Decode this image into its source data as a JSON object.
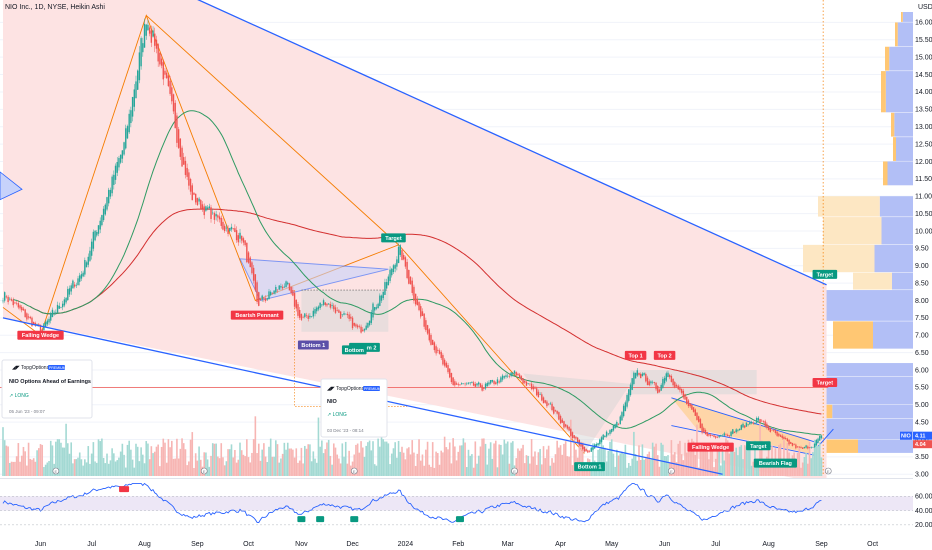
{
  "header": {
    "symbol_line": "NIO Inc., 1D, NYSE, Heikin Ashi"
  },
  "colors": {
    "up": "#26a69a",
    "down": "#ef5350",
    "wedge_fill": "#fde3e3",
    "wedge_line": "#2962ff",
    "zigzag": "#f57c00",
    "ma_red": "#d32f2f",
    "ma_green": "#2e9a62",
    "rsi": "#2962ff",
    "vp_blue": "#aebcf6",
    "vp_orange": "#ffc46b",
    "vp_cream": "#fde6c0",
    "target_red": "#ef5350"
  },
  "chart_data": {
    "type": "candlestick",
    "price_axis": {
      "currency": "USD",
      "ticks": [
        "16.00",
        "15.50",
        "15.00",
        "14.50",
        "14.00",
        "13.50",
        "13.00",
        "12.50",
        "12.00",
        "11.50",
        "11.00",
        "10.50",
        "10.00",
        "9.50",
        "9.00",
        "8.50",
        "8.00",
        "7.50",
        "7.00",
        "6.50",
        "6.00",
        "5.50",
        "5.00",
        "4.50",
        "4.00",
        "3.50",
        "3.00"
      ],
      "range": [
        2.95,
        16.3
      ]
    },
    "time_axis": {
      "ticks": [
        "Jun",
        "Jul",
        "Aug",
        "Sep",
        "Oct",
        "Nov",
        "Dec",
        "2024",
        "Feb",
        "Mar",
        "Apr",
        "May",
        "Jun",
        "Jul",
        "Aug",
        "Sep",
        "Oct"
      ],
      "range": [
        "2023-05-10",
        "2024-10-20"
      ]
    },
    "key_points": [
      {
        "date": "2023-05-10",
        "price": 8.2
      },
      {
        "date": "2023-06-01",
        "price": 7.1
      },
      {
        "date": "2023-06-25",
        "price": 8.8
      },
      {
        "date": "2023-07-20",
        "price": 12.5
      },
      {
        "date": "2023-08-02",
        "price": 16.2
      },
      {
        "date": "2023-08-12",
        "price": 14.5
      },
      {
        "date": "2023-08-28",
        "price": 11.0
      },
      {
        "date": "2023-09-15",
        "price": 10.2
      },
      {
        "date": "2023-09-27",
        "price": 9.8
      },
      {
        "date": "2023-10-06",
        "price": 7.9
      },
      {
        "date": "2023-10-22",
        "price": 8.5
      },
      {
        "date": "2023-11-01",
        "price": 7.4
      },
      {
        "date": "2023-11-15",
        "price": 8.0
      },
      {
        "date": "2023-12-05",
        "price": 7.1
      },
      {
        "date": "2023-12-20",
        "price": 8.4
      },
      {
        "date": "2023-12-28",
        "price": 9.5
      },
      {
        "date": "2024-01-10",
        "price": 7.5
      },
      {
        "date": "2024-01-28",
        "price": 5.6
      },
      {
        "date": "2024-02-15",
        "price": 5.5
      },
      {
        "date": "2024-03-05",
        "price": 5.9
      },
      {
        "date": "2024-03-25",
        "price": 5.0
      },
      {
        "date": "2024-04-15",
        "price": 3.6
      },
      {
        "date": "2024-05-05",
        "price": 4.5
      },
      {
        "date": "2024-05-15",
        "price": 6.0
      },
      {
        "date": "2024-05-28",
        "price": 5.4
      },
      {
        "date": "2024-06-02",
        "price": 6.0
      },
      {
        "date": "2024-06-25",
        "price": 4.1
      },
      {
        "date": "2024-07-10",
        "price": 4.2
      },
      {
        "date": "2024-07-25",
        "price": 4.6
      },
      {
        "date": "2024-08-08",
        "price": 4.0
      },
      {
        "date": "2024-08-20",
        "price": 3.7
      },
      {
        "date": "2024-08-28",
        "price": 3.9
      },
      {
        "date": "2024-09-01",
        "price": 4.11
      }
    ],
    "last_price": "4.11",
    "last_price_secondary": "4.04",
    "last_price_tag": "NIO",
    "annotations": [
      {
        "text": "Falling Wedge",
        "kind": "red",
        "date": "2023-06-01",
        "price": 7.0
      },
      {
        "text": "Bearish Pennant",
        "kind": "red",
        "date": "2023-10-06",
        "price": 7.58
      },
      {
        "text": "Bottom 1",
        "kind": "purple",
        "date": "2023-11-08",
        "price": 6.72
      },
      {
        "text": "Bottom 2",
        "kind": "teal",
        "date": "2023-12-08",
        "price": 6.65
      },
      {
        "text": "Bottom",
        "kind": "teal",
        "date": "2023-12-02",
        "price": 6.58
      },
      {
        "text": "Target",
        "kind": "teal",
        "date": "2023-12-25",
        "price": 9.8
      },
      {
        "text": "Top 1",
        "kind": "red",
        "date": "2024-05-15",
        "price": 6.42
      },
      {
        "text": "Top 2",
        "kind": "red",
        "date": "2024-06-01",
        "price": 6.42
      },
      {
        "text": "Bottom 1",
        "kind": "teal",
        "date": "2024-04-18",
        "price": 3.22
      },
      {
        "text": "Falling Wedge",
        "kind": "red",
        "date": "2024-06-28",
        "price": 3.78
      },
      {
        "text": "Target",
        "kind": "teal",
        "date": "2024-07-26",
        "price": 3.82
      },
      {
        "text": "Bearish Flag",
        "kind": "teal",
        "date": "2024-08-05",
        "price": 3.32
      },
      {
        "text": "Target",
        "kind": "teal",
        "date": "2024-09-03",
        "price": 8.75
      },
      {
        "text": "Target",
        "kind": "red",
        "date": "2024-09-03",
        "price": 5.64
      }
    ],
    "rsi_ticks": [
      "60.00",
      "40.00",
      "20.00"
    ],
    "rsi_range": [
      10,
      80
    ]
  },
  "idea_cards": [
    {
      "author": "TopgOptions",
      "badge": "PREMIUM",
      "title": "NIO Options Ahead of Earnings",
      "tag": "LONG",
      "date": "05 Jun '23 - 09:07"
    },
    {
      "author": "TopgOptions",
      "badge": "PREMIUM",
      "title": "NIO",
      "tag": "LONG",
      "date": "03 Dec '23 - 08:14"
    }
  ],
  "event_markers": [
    "E",
    "E",
    "E",
    "E",
    "E",
    "E"
  ]
}
